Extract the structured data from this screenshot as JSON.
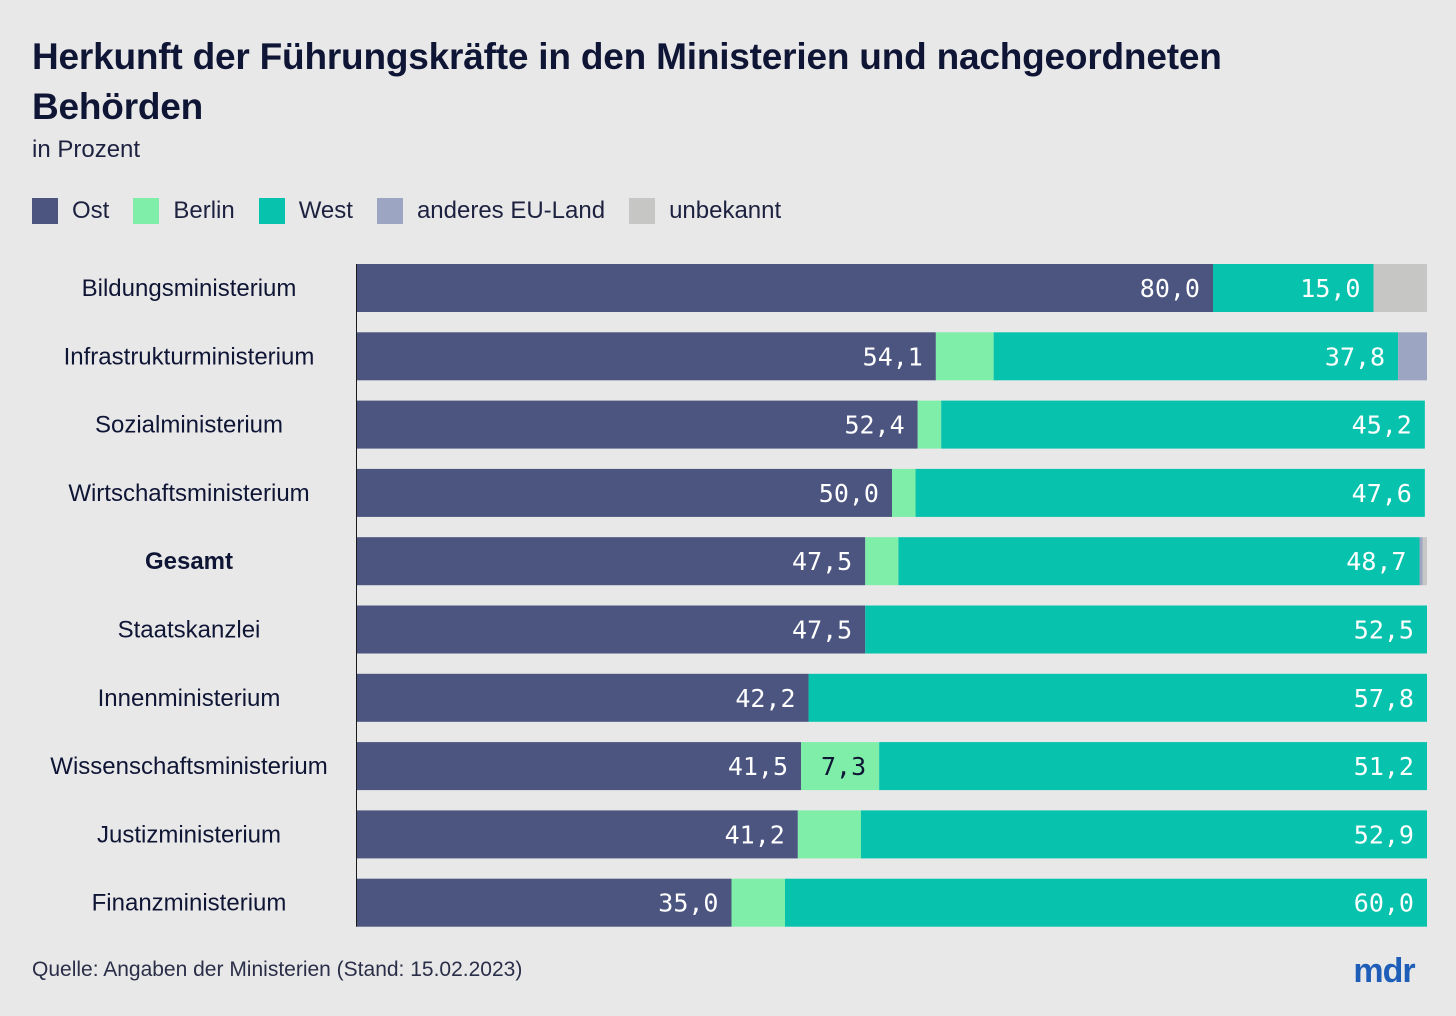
{
  "title": "Herkunft der Führungskräfte in den Ministerien und nachgeordneten Behörden",
  "subtitle": "in Prozent",
  "source": "Quelle: Angaben der Ministerien (Stand: 15.02.2023)",
  "logo_text": "mdr",
  "colors": {
    "Ost": "#4b5580",
    "Berlin": "#7eeea8",
    "West": "#07c2ad",
    "anderes EU-Land": "#9ca5c2",
    "unbekannt": "#c6c6c4",
    "background": "#e8e8e8",
    "title": "#0f1535",
    "logo": "#1f5eb8"
  },
  "chart_data": {
    "type": "bar",
    "orientation": "horizontal",
    "stacked": true,
    "title": "Herkunft der Führungskräfte in den Ministerien und nachgeordneten Behörden",
    "subtitle": "in Prozent",
    "xlim": [
      0,
      100
    ],
    "grid": false,
    "legend_position": "top-left",
    "categories": [
      "Bildungsministerium",
      "Infrastrukturministerium",
      "Sozialministerium",
      "Wirtschaftsministerium",
      "Gesamt",
      "Staatskanzlei",
      "Innenministerium",
      "Wissenschaftsministerium",
      "Justizministerium",
      "Finanzministerium"
    ],
    "bold_categories": [
      "Gesamt"
    ],
    "series": [
      {
        "name": "Ost",
        "values": [
          80.0,
          54.1,
          52.4,
          50.0,
          47.5,
          47.5,
          42.2,
          41.5,
          41.2,
          35.0
        ],
        "labels": [
          "80,0",
          "54,1",
          "52,4",
          "50,0",
          "47,5",
          "47,5",
          "42,2",
          "41,5",
          "41,2",
          "35,0"
        ]
      },
      {
        "name": "Berlin",
        "values": [
          0,
          5.4,
          2.2,
          2.2,
          3.1,
          0,
          0,
          7.3,
          5.9,
          5.0
        ],
        "labels": [
          "",
          "",
          "",
          "",
          "",
          "",
          "",
          "7,3",
          "",
          ""
        ]
      },
      {
        "name": "West",
        "values": [
          15.0,
          37.8,
          45.2,
          47.6,
          48.7,
          52.5,
          57.8,
          51.2,
          52.9,
          60.0
        ],
        "labels": [
          "15,0",
          "37,8",
          "45,2",
          "47,6",
          "48,7",
          "52,5",
          "57,8",
          "51,2",
          "52,9",
          "60,0"
        ]
      },
      {
        "name": "anderes EU-Land",
        "values": [
          0,
          2.7,
          0,
          0,
          0.3,
          0,
          0,
          0,
          0,
          0
        ],
        "labels": [
          "",
          "",
          "",
          "",
          "",
          "",
          "",
          "",
          "",
          ""
        ]
      },
      {
        "name": "unbekannt",
        "values": [
          5.0,
          0,
          0,
          0,
          0.4,
          0,
          0,
          0,
          0,
          0
        ],
        "labels": [
          "",
          "",
          "",
          "",
          "",
          "",
          "",
          "",
          "",
          ""
        ]
      }
    ]
  }
}
